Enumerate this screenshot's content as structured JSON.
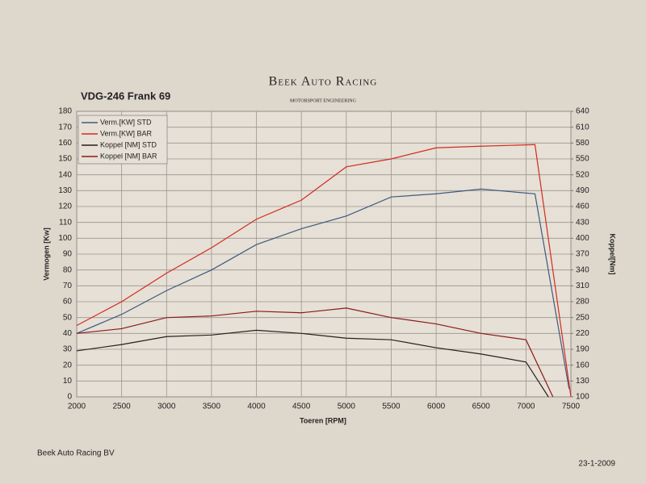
{
  "chart_data": {
    "type": "line",
    "title": "VDG-246 Frank 69",
    "brand": "Beek Auto Racing",
    "brand_subtitle": "MOTORSPORT ENGINEERING",
    "xlabel": "Toeren [RPM]",
    "ylabel": "Vermogen [Kw]",
    "y2label": "Koppel[Nm]",
    "footer_left": "Beek Auto Racing BV",
    "footer_right": "23-1-2009",
    "xlim": [
      2000,
      7500
    ],
    "xticks": [
      2000,
      2500,
      3000,
      3500,
      4000,
      4500,
      5000,
      5500,
      6000,
      6500,
      7000,
      7500
    ],
    "ylim": [
      0,
      180
    ],
    "yticks": [
      0,
      10,
      20,
      30,
      40,
      50,
      60,
      70,
      80,
      90,
      100,
      110,
      120,
      130,
      140,
      150,
      160,
      170,
      180
    ],
    "y2lim": [
      100,
      640
    ],
    "y2ticks": [
      100,
      130,
      160,
      190,
      220,
      250,
      280,
      310,
      340,
      370,
      400,
      430,
      460,
      490,
      520,
      550,
      580,
      610,
      640
    ],
    "grid": true,
    "legend": "upper left",
    "series": [
      {
        "name": "Verm.[KW] STD",
        "color": "#3d5a80",
        "x": [
          2000,
          2500,
          3000,
          3500,
          4000,
          4500,
          5000,
          5500,
          6000,
          6500,
          7100,
          7480
        ],
        "values": [
          40,
          52,
          67,
          80,
          96,
          106,
          114,
          126,
          128,
          131,
          128,
          5
        ]
      },
      {
        "name": "Verm.[KW] BAR",
        "color": "#d42a1e",
        "x": [
          2000,
          2500,
          3000,
          3500,
          4000,
          4500,
          5000,
          5500,
          6000,
          6500,
          7100,
          7500
        ],
        "values": [
          45,
          60,
          78,
          94,
          112,
          124,
          145,
          150,
          157,
          158,
          159,
          0
        ]
      },
      {
        "name": "Koppel [NM] STD",
        "color": "#2a1e1e",
        "axis": "y2",
        "x": [
          2000,
          2500,
          3000,
          3500,
          4000,
          4500,
          5000,
          5500,
          6000,
          6500,
          7000,
          7250
        ],
        "values": [
          187,
          199,
          214,
          217,
          226,
          220,
          211,
          208,
          193,
          181,
          166,
          100
        ]
      },
      {
        "name": "Koppel [NM] BAR",
        "color": "#8b1a1a",
        "axis": "y2",
        "x": [
          2000,
          2500,
          3000,
          3500,
          4000,
          4500,
          5000,
          5500,
          6000,
          6500,
          7000,
          7300
        ],
        "values": [
          220,
          229,
          250,
          253,
          262,
          259,
          268,
          250,
          238,
          220,
          208,
          100
        ]
      }
    ]
  }
}
